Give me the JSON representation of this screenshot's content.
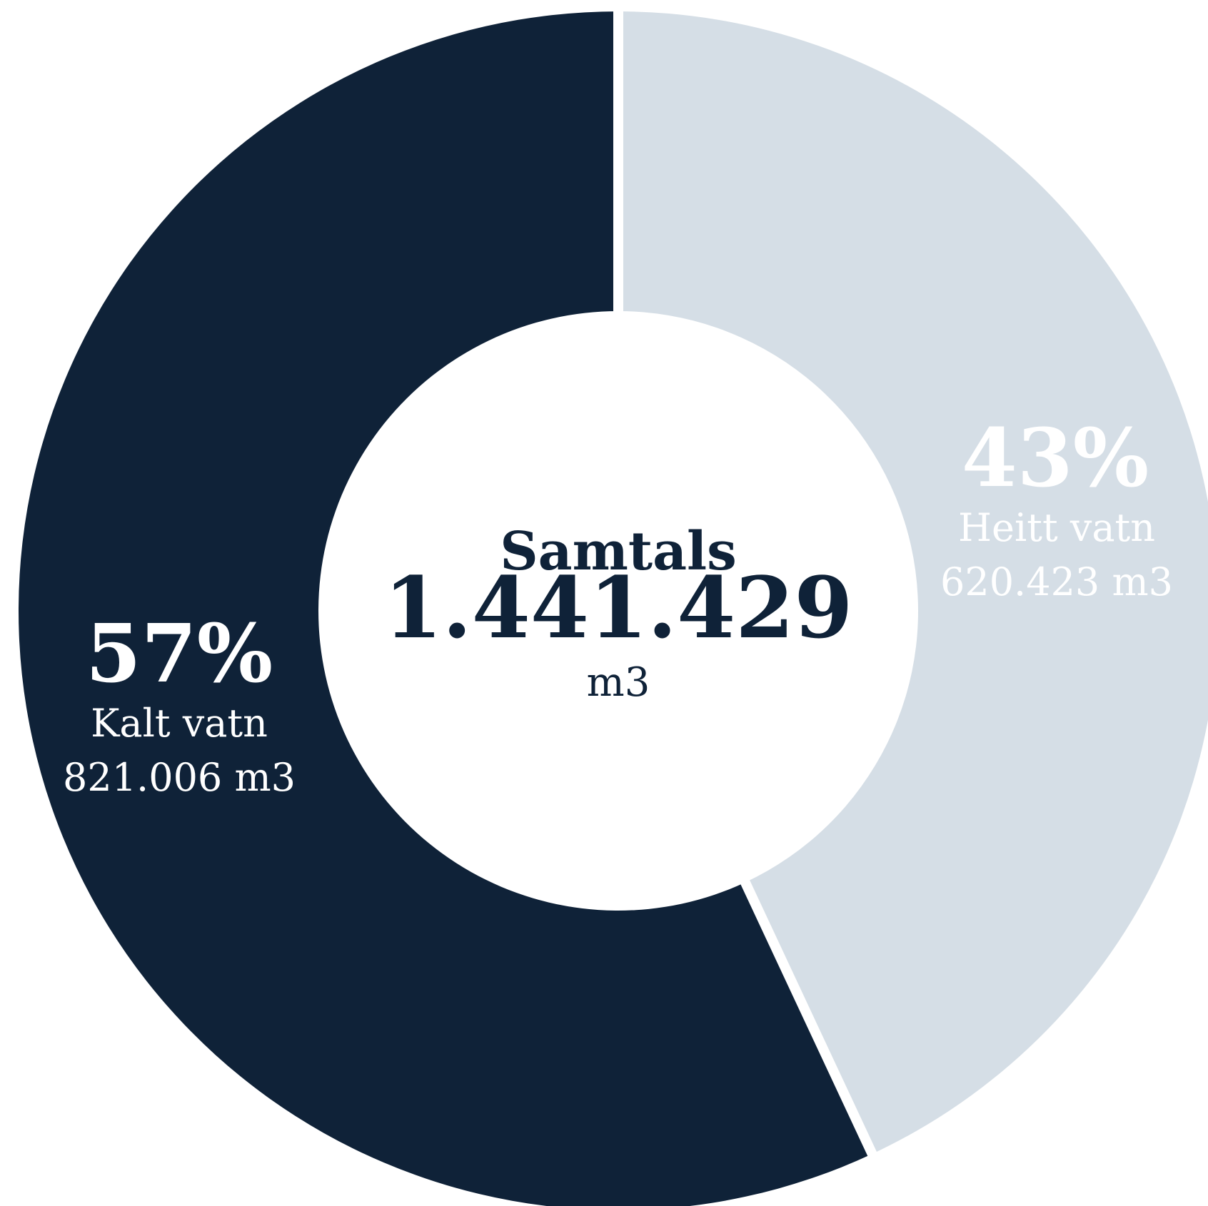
{
  "chart_data": {
    "type": "pie",
    "variant": "donut",
    "title": "",
    "center_label": "Samtals",
    "center_value": "1.441.429",
    "center_unit": "m3",
    "total": 1441429,
    "unit": "m3",
    "slices": [
      {
        "name": "Heitt vatn",
        "value": 620423,
        "percent": 43,
        "percent_label": "43%",
        "value_label": "620.423 m3",
        "color": "#d5dee6",
        "label_color": "#ffffff"
      },
      {
        "name": "Kalt vatn",
        "value": 821006,
        "percent": 57,
        "percent_label": "57%",
        "value_label": "821.006 m3",
        "color": "#0f2238",
        "label_color": "#ffffff"
      }
    ],
    "center_text_color": "#0f2238",
    "background": "#ffffff",
    "separator_color": "#ffffff"
  }
}
